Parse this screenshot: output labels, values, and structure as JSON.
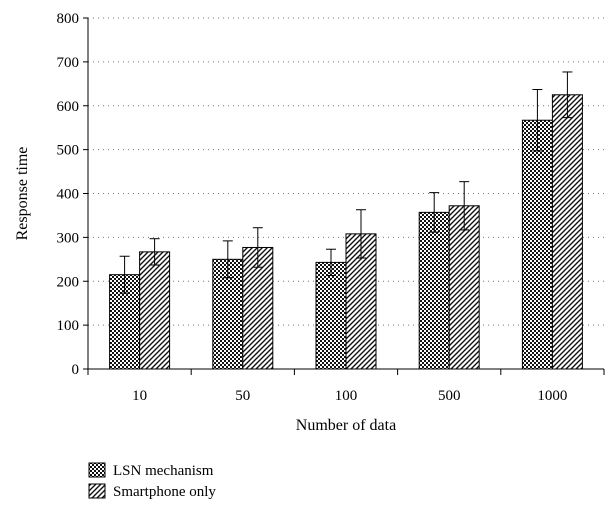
{
  "chart_data": {
    "type": "bar",
    "categories": [
      "10",
      "50",
      "100",
      "500",
      "1000"
    ],
    "series": [
      {
        "name": "LSN mechanism",
        "values": [
          215,
          250,
          243,
          357,
          567
        ],
        "errors": [
          42,
          42,
          30,
          45,
          70
        ],
        "pattern": "checker"
      },
      {
        "name": "Smartphone only",
        "values": [
          267,
          277,
          308,
          372,
          625
        ],
        "errors": [
          30,
          45,
          55,
          55,
          52
        ],
        "pattern": "diagonal"
      }
    ],
    "xlabel": "Number of data",
    "ylabel": "Response time",
    "ylim": [
      0,
      800
    ],
    "yticks": [
      "0",
      "100",
      "200",
      "300",
      "400",
      "500",
      "600",
      "700",
      "800"
    ],
    "grid": "horizontal dotted",
    "legend_position": "bottom-left"
  }
}
